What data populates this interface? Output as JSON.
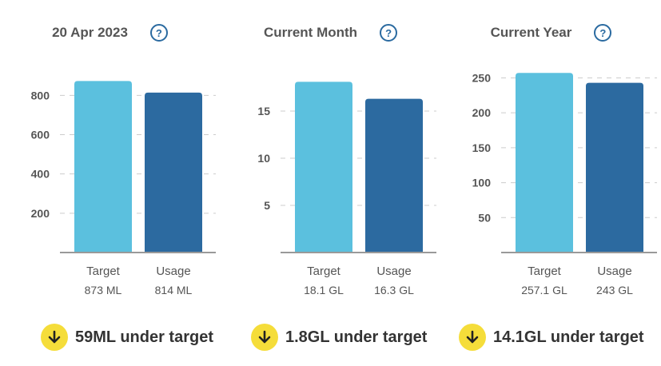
{
  "colors": {
    "target": "#5bc0de",
    "usage": "#2c6aa0",
    "badge": "#f5dd3a",
    "icon": "#2a6aa0",
    "axis": "#999999",
    "grid": "#cccccc"
  },
  "chart_data": [
    {
      "type": "bar",
      "title": "20 Apr 2023",
      "categories": [
        "Target",
        "Usage"
      ],
      "values": [
        873,
        814
      ],
      "value_labels": [
        "873 ML",
        "814 ML"
      ],
      "yticks": [
        200,
        400,
        600,
        800
      ],
      "ylim": [
        0,
        960
      ],
      "grid": true,
      "help_icon": "question-circle-icon",
      "summary": "59ML under target",
      "summary_icon": "arrow-down-icon"
    },
    {
      "type": "bar",
      "title": "Current Month",
      "categories": [
        "Target",
        "Usage"
      ],
      "values": [
        18.1,
        16.3
      ],
      "value_labels": [
        "18.1 GL",
        "16.3 GL"
      ],
      "yticks": [
        5,
        10,
        15
      ],
      "ylim": [
        0,
        20
      ],
      "grid": true,
      "help_icon": "question-circle-icon",
      "summary": "1.8GL under target",
      "summary_icon": "arrow-down-icon"
    },
    {
      "type": "bar",
      "title": "Current Year",
      "categories": [
        "Target",
        "Usage"
      ],
      "values": [
        257.1,
        243
      ],
      "value_labels": [
        "257.1 GL",
        "243 GL"
      ],
      "yticks": [
        50,
        100,
        150,
        200,
        250
      ],
      "ylim": [
        0,
        270
      ],
      "grid": true,
      "help_icon": "question-circle-icon",
      "summary": "14.1GL under target",
      "summary_icon": "arrow-down-icon"
    }
  ]
}
